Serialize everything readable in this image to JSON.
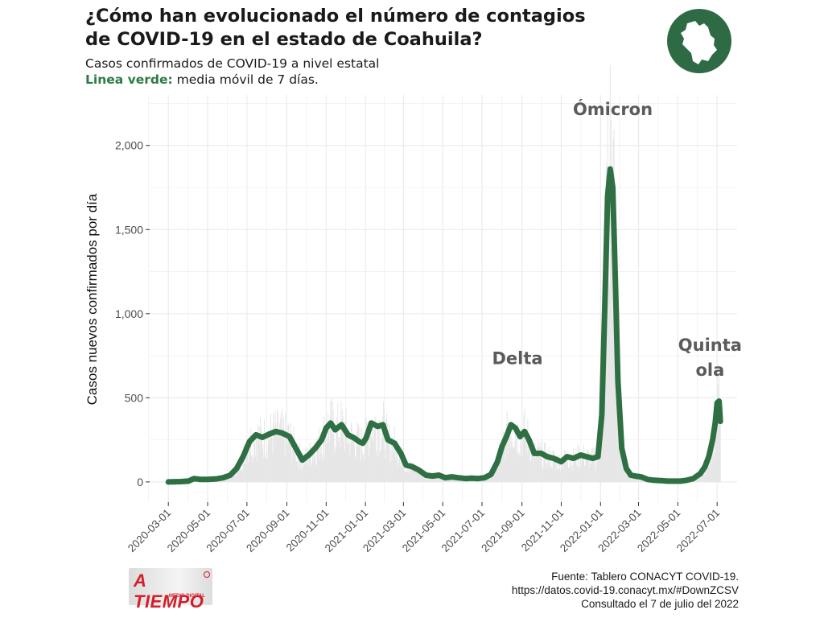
{
  "header": {
    "title_line1": "¿Cómo han evolucionado el número de contagios",
    "title_line2": "de COVID-19 en el estado de Coahuila?",
    "subtitle": "Casos confirmados de COVID-19 a nivel estatal",
    "legend_label": "Linea verde:",
    "legend_text": " media móvil de 7 días."
  },
  "caption": {
    "line1": "Fuente: Tablero CONACYT COVID-19.",
    "line2": "https://datos.covid-19.conacyt.mx/#DownZCSV",
    "line3": "Consultado el 7 de julio del 2022"
  },
  "logo": {
    "text": "A TIEMPO",
    "subtext": "MEDIO DIGITAL"
  },
  "colors": {
    "line": "#2e7043",
    "bars": "#e6e6e6",
    "grid": "#ebebeb",
    "emblem": "#2e6b45",
    "annotation": "#5b5b5b",
    "logo": "#d21f2a"
  },
  "chart_data": {
    "type": "line",
    "title": "¿Cómo han evolucionado el número de contagios de COVID-19 en el estado de Coahuila?",
    "subtitle": "Casos confirmados de COVID-19 a nivel estatal",
    "xlabel": "",
    "ylabel": "Casos nuevos confirmados por día",
    "xlim": [
      "2020-02-01",
      "2022-08-01"
    ],
    "ylim": [
      -120,
      2300
    ],
    "y_ticks": [
      0,
      500,
      1000,
      1500,
      2000
    ],
    "y_tick_labels": [
      "0",
      "500",
      "1,000",
      "1,500",
      "2,000"
    ],
    "x_ticks": [
      "2020-03-01",
      "2020-05-01",
      "2020-07-01",
      "2020-09-01",
      "2020-11-01",
      "2021-01-01",
      "2021-03-01",
      "2021-05-01",
      "2021-07-01",
      "2021-09-01",
      "2021-11-01",
      "2022-01-01",
      "2022-03-01",
      "2022-05-01",
      "2022-07-01"
    ],
    "grid": true,
    "legend": "none",
    "series": [
      {
        "name": "media móvil de 7 días",
        "style": "line",
        "x": [
          "2020-03-01",
          "2020-03-20",
          "2020-04-01",
          "2020-04-10",
          "2020-04-20",
          "2020-05-01",
          "2020-05-15",
          "2020-05-25",
          "2020-06-05",
          "2020-06-15",
          "2020-06-25",
          "2020-07-05",
          "2020-07-15",
          "2020-07-25",
          "2020-08-05",
          "2020-08-15",
          "2020-08-25",
          "2020-09-05",
          "2020-09-15",
          "2020-09-25",
          "2020-10-05",
          "2020-10-15",
          "2020-10-25",
          "2020-11-01",
          "2020-11-08",
          "2020-11-15",
          "2020-11-25",
          "2020-12-05",
          "2020-12-15",
          "2020-12-22",
          "2020-12-28",
          "2021-01-02",
          "2021-01-10",
          "2021-01-20",
          "2021-01-28",
          "2021-02-05",
          "2021-02-15",
          "2021-02-25",
          "2021-03-05",
          "2021-03-15",
          "2021-03-25",
          "2021-04-05",
          "2021-04-15",
          "2021-04-25",
          "2021-05-05",
          "2021-05-15",
          "2021-05-25",
          "2021-06-05",
          "2021-06-15",
          "2021-06-25",
          "2021-07-05",
          "2021-07-15",
          "2021-07-25",
          "2021-08-01",
          "2021-08-08",
          "2021-08-15",
          "2021-08-22",
          "2021-08-29",
          "2021-09-05",
          "2021-09-12",
          "2021-09-20",
          "2021-10-01",
          "2021-10-10",
          "2021-10-20",
          "2021-11-01",
          "2021-11-10",
          "2021-11-20",
          "2021-12-01",
          "2021-12-10",
          "2021-12-20",
          "2021-12-28",
          "2022-01-03",
          "2022-01-08",
          "2022-01-12",
          "2022-01-16",
          "2022-01-20",
          "2022-01-24",
          "2022-01-28",
          "2022-02-03",
          "2022-02-10",
          "2022-02-17",
          "2022-02-24",
          "2022-03-05",
          "2022-03-15",
          "2022-03-25",
          "2022-04-05",
          "2022-04-15",
          "2022-04-25",
          "2022-05-05",
          "2022-05-15",
          "2022-05-25",
          "2022-06-05",
          "2022-06-12",
          "2022-06-18",
          "2022-06-24",
          "2022-06-28",
          "2022-07-01",
          "2022-07-04",
          "2022-07-06"
        ],
        "y": [
          0,
          2,
          5,
          20,
          15,
          15,
          18,
          25,
          40,
          80,
          150,
          240,
          280,
          265,
          285,
          300,
          290,
          270,
          200,
          130,
          160,
          200,
          250,
          320,
          350,
          310,
          340,
          280,
          260,
          240,
          230,
          260,
          350,
          330,
          340,
          250,
          230,
          170,
          100,
          90,
          70,
          40,
          35,
          40,
          25,
          30,
          25,
          20,
          22,
          20,
          25,
          45,
          120,
          210,
          270,
          340,
          320,
          270,
          300,
          250,
          170,
          170,
          150,
          140,
          120,
          150,
          140,
          160,
          150,
          140,
          150,
          400,
          1100,
          1700,
          1860,
          1750,
          1200,
          600,
          200,
          80,
          40,
          35,
          30,
          15,
          10,
          8,
          5,
          5,
          5,
          10,
          20,
          50,
          90,
          150,
          250,
          350,
          470,
          480,
          360
        ]
      }
    ],
    "annotations": [
      {
        "text": "Delta",
        "x": "2021-08-25",
        "y": 700
      },
      {
        "text": "Ómicron",
        "x": "2022-01-20",
        "y": 2180
      },
      {
        "text": "Quinta",
        "x": "2022-06-20",
        "y": 780
      },
      {
        "text": "ola",
        "x": "2022-06-20",
        "y": 630
      }
    ]
  }
}
